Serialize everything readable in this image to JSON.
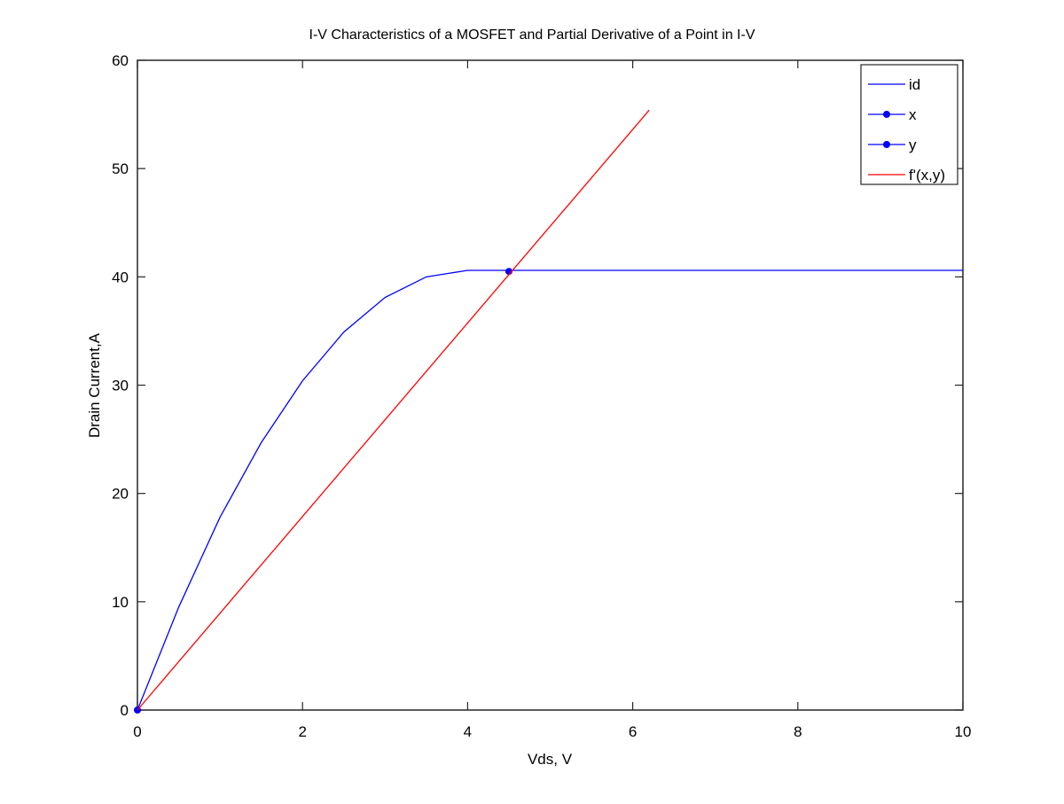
{
  "chart_data": {
    "type": "line",
    "title": "I-V Characteristics of a MOSFET and Partial Derivative of a Point in I-V",
    "xlabel": "Vds, V",
    "ylabel": "Drain Current,A",
    "xlim": [
      0,
      10
    ],
    "ylim": [
      0,
      60
    ],
    "xticks": [
      0,
      2,
      4,
      6,
      8,
      10
    ],
    "yticks": [
      0,
      10,
      20,
      30,
      40,
      50,
      60
    ],
    "grid": false,
    "legend_position": "upper right",
    "series": [
      {
        "name": "id",
        "color": "#0000ff",
        "marker": "none",
        "x": [
          0,
          0.5,
          1,
          1.5,
          2,
          2.5,
          3,
          3.5,
          4,
          4.5,
          5,
          5.5,
          6,
          6.5,
          7,
          7.5,
          8,
          8.5,
          9,
          9.5,
          10
        ],
        "y": [
          0,
          9.5,
          17.8,
          24.7,
          30.4,
          34.9,
          38.1,
          40.0,
          40.6,
          40.6,
          40.6,
          40.6,
          40.6,
          40.6,
          40.6,
          40.6,
          40.6,
          40.6,
          40.6,
          40.6,
          40.6
        ]
      },
      {
        "name": "x",
        "color": "#0000ff",
        "marker": "dot",
        "x": [
          0
        ],
        "y": [
          0
        ]
      },
      {
        "name": "y",
        "color": "#0000ff",
        "marker": "dot",
        "x": [
          4.5
        ],
        "y": [
          40.5
        ]
      },
      {
        "name": "f'(x,y)",
        "color": "#ff0000",
        "marker": "none",
        "x": [
          0,
          6.2
        ],
        "y": [
          0,
          55.4
        ]
      }
    ]
  }
}
